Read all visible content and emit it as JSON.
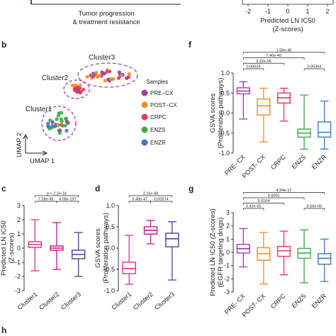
{
  "top": {
    "left_caption_line1": "Tumor progression",
    "left_caption_line2": "& treatment resistance",
    "axis_ticks": [
      "-2",
      "-1",
      "0",
      "1",
      "2"
    ],
    "axis_label_line1": "Predicted LN IC50",
    "axis_label_line2": "(Z-scores)"
  },
  "panel_b": {
    "letter": "b",
    "clusters": [
      "Cluster3",
      "Cluster2",
      "Cluster1"
    ],
    "xlabel": "UMAP 1",
    "ylabel": "UMAP 2",
    "legend_title": "Samples",
    "legend": [
      {
        "label": "PRE−CX",
        "color": "#9b3fa6"
      },
      {
        "label": "POST−CX",
        "color": "#f08a24"
      },
      {
        "label": "CRPC",
        "color": "#e8345a"
      },
      {
        "label": "ENZS",
        "color": "#3daa49"
      },
      {
        "label": "ENZR",
        "color": "#3a7ac0"
      }
    ]
  },
  "panel_h": {
    "letter": "h"
  },
  "chart_data": [
    {
      "panel": "c",
      "type": "box",
      "ylabel_line1": "Predicted LN IC50",
      "ylabel_line2": "(Z-scores)",
      "ylim": [
        -3,
        3
      ],
      "yticks": [
        "3",
        "2",
        "1",
        "0",
        "-1",
        "-2",
        "-3"
      ],
      "categories": [
        "Cluster1",
        "Cluster2",
        "Cluster3"
      ],
      "colors": [
        "#d6348a",
        "#c2188c",
        "#4a3f9a"
      ],
      "boxes": [
        {
          "min": -1.6,
          "q1": 0.05,
          "median": 0.25,
          "q3": 0.45,
          "max": 2.0
        },
        {
          "min": -1.5,
          "q1": -0.15,
          "median": 0.0,
          "q3": 0.15,
          "max": 1.8
        },
        {
          "min": -2.0,
          "q1": -0.75,
          "median": -0.45,
          "q3": -0.15,
          "max": 1.1
        }
      ],
      "annotations": [
        {
          "text": "p < 2.2e-16",
          "from": 0,
          "to": 2,
          "level": 2
        },
        {
          "text": "7.28e-98",
          "from": 0,
          "to": 1,
          "level": 1
        },
        {
          "text": "4.08e-197",
          "from": 1,
          "to": 2,
          "level": 1
        }
      ]
    },
    {
      "panel": "d",
      "type": "box",
      "ylabel_line1": "GSVA scores",
      "ylabel_line2": "(Proliferation pathways)",
      "ylim": [
        -1.0,
        1.0
      ],
      "yticks": [
        "1.0",
        "0.5",
        "0.0",
        "-0.5",
        "-1.0"
      ],
      "categories": [
        "Cluster1",
        "Cluster2",
        "Cluster3"
      ],
      "colors": [
        "#d6348a",
        "#c2188c",
        "#4a3f9a"
      ],
      "boxes": [
        {
          "min": -0.85,
          "q1": -0.6,
          "median": -0.48,
          "q3": -0.33,
          "max": 0.3
        },
        {
          "min": 0.1,
          "q1": 0.33,
          "median": 0.42,
          "q3": 0.5,
          "max": 0.65
        },
        {
          "min": -0.75,
          "q1": 0.03,
          "median": 0.22,
          "q3": 0.35,
          "max": 0.62
        }
      ],
      "annotations": [
        {
          "text": "2.11e-49",
          "from": 0,
          "to": 2,
          "level": 2
        },
        {
          "text": "5.48e-47",
          "from": 0,
          "to": 1,
          "level": 1
        },
        {
          "text": "0.00574",
          "from": 1,
          "to": 2,
          "level": 1
        }
      ]
    },
    {
      "panel": "f",
      "type": "box",
      "ylabel_line1": "GSVA scores",
      "ylabel_line2": "(Proliferation pathways)",
      "ylim": [
        -1.0,
        1.0
      ],
      "yticks": [
        "1.0",
        "0.5",
        "0.0",
        "-0.5",
        "-1.0"
      ],
      "categories": [
        "PRE- CX",
        "POST- CX",
        "CRPC",
        "ENZS",
        "ENZR"
      ],
      "colors": [
        "#9b3fa6",
        "#f08a24",
        "#e8345a",
        "#3daa49",
        "#3a7ac0"
      ],
      "boxes": [
        {
          "min": -0.15,
          "q1": 0.48,
          "median": 0.55,
          "q3": 0.63,
          "max": 0.78
        },
        {
          "min": -0.72,
          "q1": -0.05,
          "median": 0.18,
          "q3": 0.35,
          "max": 0.62
        },
        {
          "min": -0.2,
          "q1": 0.25,
          "median": 0.38,
          "q3": 0.5,
          "max": 0.62
        },
        {
          "min": -0.9,
          "q1": -0.6,
          "median": -0.5,
          "q3": -0.4,
          "max": 0.45
        },
        {
          "min": -0.9,
          "q1": -0.6,
          "median": -0.48,
          "q3": -0.22,
          "max": 0.3
        }
      ],
      "annotations": [
        {
          "text": "1.59e-40",
          "from": 0,
          "to": 4,
          "level": 4
        },
        {
          "text": "7.46e-40",
          "from": 0,
          "to": 3,
          "level": 3
        },
        {
          "text": "3.22e-06",
          "from": 0,
          "to": 2,
          "level": 2
        },
        {
          "text": "0.00016",
          "from": 0,
          "to": 1,
          "level": 1
        },
        {
          "text": "0.05364",
          "from": 3,
          "to": 4,
          "level": 1
        }
      ]
    },
    {
      "panel": "g",
      "type": "box",
      "ylabel_line1": "Predicted LN IC50 (Z-scores)",
      "ylabel_line2": "(EGFR targeting drugs)",
      "ylim": [
        -3,
        3
      ],
      "yticks": [
        "3",
        "2",
        "1",
        "0",
        "-1",
        "-2",
        "-3"
      ],
      "categories": [
        "PRE- CX",
        "POST- CX",
        "CRPC",
        "ENZS",
        "ENZR"
      ],
      "colors": [
        "#9b3fa6",
        "#f08a24",
        "#e8345a",
        "#3daa49",
        "#3a7ac0"
      ],
      "boxes": [
        {
          "min": -1.1,
          "q1": -0.05,
          "median": 0.28,
          "q3": 0.6,
          "max": 1.8
        },
        {
          "min": -2.4,
          "q1": -0.6,
          "median": -0.1,
          "q3": 0.35,
          "max": 1.5
        },
        {
          "min": -1.7,
          "q1": -0.3,
          "median": 0.12,
          "q3": 0.45,
          "max": 1.6
        },
        {
          "min": -2.3,
          "q1": -0.45,
          "median": -0.05,
          "q3": 0.3,
          "max": 1.7
        },
        {
          "min": -2.2,
          "q1": -0.9,
          "median": -0.45,
          "q3": -0.1,
          "max": 1.0
        }
      ],
      "annotations": [
        {
          "text": "4.54e-17",
          "from": 0,
          "to": 4,
          "level": 4
        },
        {
          "text": "0.0001",
          "from": 0,
          "to": 3,
          "level": 3
        },
        {
          "text": "0.0164",
          "from": 0,
          "to": 2,
          "level": 2
        },
        {
          "text": "3.42e-05",
          "from": 0,
          "to": 1,
          "level": 1
        },
        {
          "text": "8.56e-06",
          "from": 3,
          "to": 4,
          "level": 1
        }
      ]
    }
  ]
}
